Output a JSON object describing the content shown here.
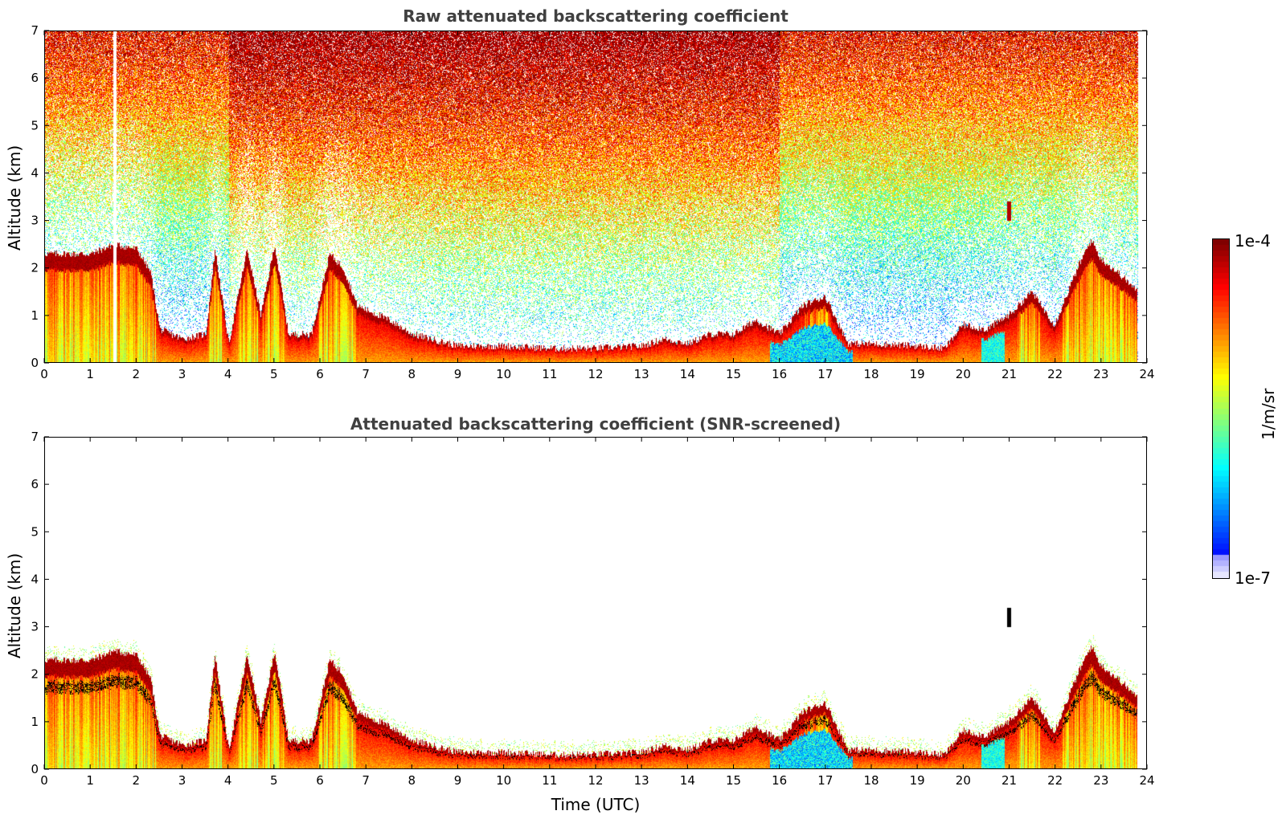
{
  "chart_data": [
    {
      "type": "heatmap",
      "title": "Raw attenuated backscattering coefficient",
      "xlabel": "",
      "ylabel": "Altitude (km)",
      "xlim": [
        0,
        24
      ],
      "ylim": [
        0,
        7
      ],
      "xticks": [
        "0",
        "1",
        "2",
        "3",
        "4",
        "5",
        "6",
        "7",
        "8",
        "9",
        "10",
        "11",
        "12",
        "13",
        "14",
        "15",
        "16",
        "17",
        "18",
        "19",
        "20",
        "21",
        "22",
        "23",
        "24"
      ],
      "yticks": [
        "0",
        "1",
        "2",
        "3",
        "4",
        "5",
        "6",
        "7"
      ],
      "colorscale": "jet",
      "noise": "speckled noise field above the boundary layer, increasing with altitude",
      "layer_top_km": [
        [
          0,
          2.3
        ],
        [
          0.5,
          2.3
        ],
        [
          1.0,
          2.3
        ],
        [
          1.5,
          2.5
        ],
        [
          2.0,
          2.4
        ],
        [
          2.3,
          1.9
        ],
        [
          2.5,
          0.7
        ],
        [
          3.0,
          0.5
        ],
        [
          3.5,
          0.6
        ],
        [
          3.7,
          2.4
        ],
        [
          4.0,
          0.4
        ],
        [
          4.4,
          2.4
        ],
        [
          4.7,
          1.0
        ],
        [
          5.0,
          2.5
        ],
        [
          5.3,
          0.6
        ],
        [
          5.8,
          0.6
        ],
        [
          6.2,
          2.3
        ],
        [
          6.5,
          2.0
        ],
        [
          6.8,
          1.2
        ],
        [
          7.5,
          0.9
        ],
        [
          8.0,
          0.6
        ],
        [
          9.0,
          0.35
        ],
        [
          10.0,
          0.35
        ],
        [
          11.0,
          0.3
        ],
        [
          12.0,
          0.3
        ],
        [
          13.0,
          0.35
        ],
        [
          13.5,
          0.5
        ],
        [
          14.0,
          0.4
        ],
        [
          14.5,
          0.6
        ],
        [
          15.0,
          0.6
        ],
        [
          15.5,
          0.9
        ],
        [
          16.0,
          0.6
        ],
        [
          16.5,
          1.2
        ],
        [
          17.0,
          1.4
        ],
        [
          17.5,
          0.4
        ],
        [
          18.0,
          0.4
        ],
        [
          19.0,
          0.35
        ],
        [
          19.6,
          0.3
        ],
        [
          20.0,
          0.8
        ],
        [
          20.5,
          0.7
        ],
        [
          21.0,
          1.0
        ],
        [
          21.5,
          1.5
        ],
        [
          22.0,
          0.8
        ],
        [
          22.5,
          2.0
        ],
        [
          22.8,
          2.6
        ],
        [
          23.0,
          2.2
        ],
        [
          23.5,
          1.8
        ],
        [
          23.8,
          1.5
        ]
      ]
    },
    {
      "type": "heatmap",
      "title": "Attenuated backscattering coefficient (SNR-screened)",
      "xlabel": "Time (UTC)",
      "ylabel": "Altitude (km)",
      "xlim": [
        0,
        24
      ],
      "ylim": [
        0,
        7
      ],
      "xticks": [
        "0",
        "1",
        "2",
        "3",
        "4",
        "5",
        "6",
        "7",
        "8",
        "9",
        "10",
        "11",
        "12",
        "13",
        "14",
        "15",
        "16",
        "17",
        "18",
        "19",
        "20",
        "21",
        "22",
        "23",
        "24"
      ],
      "yticks": [
        "0",
        "1",
        "2",
        "3",
        "4",
        "5",
        "6",
        "7"
      ],
      "colorscale": "jet",
      "screened": true,
      "isolated_feature": {
        "time": 21.0,
        "altitude_km": [
          3.0,
          3.4
        ]
      }
    }
  ],
  "colorbar": {
    "max_label": "1e-4",
    "min_label": "1e-7",
    "unit_label": "1/m/sr"
  }
}
